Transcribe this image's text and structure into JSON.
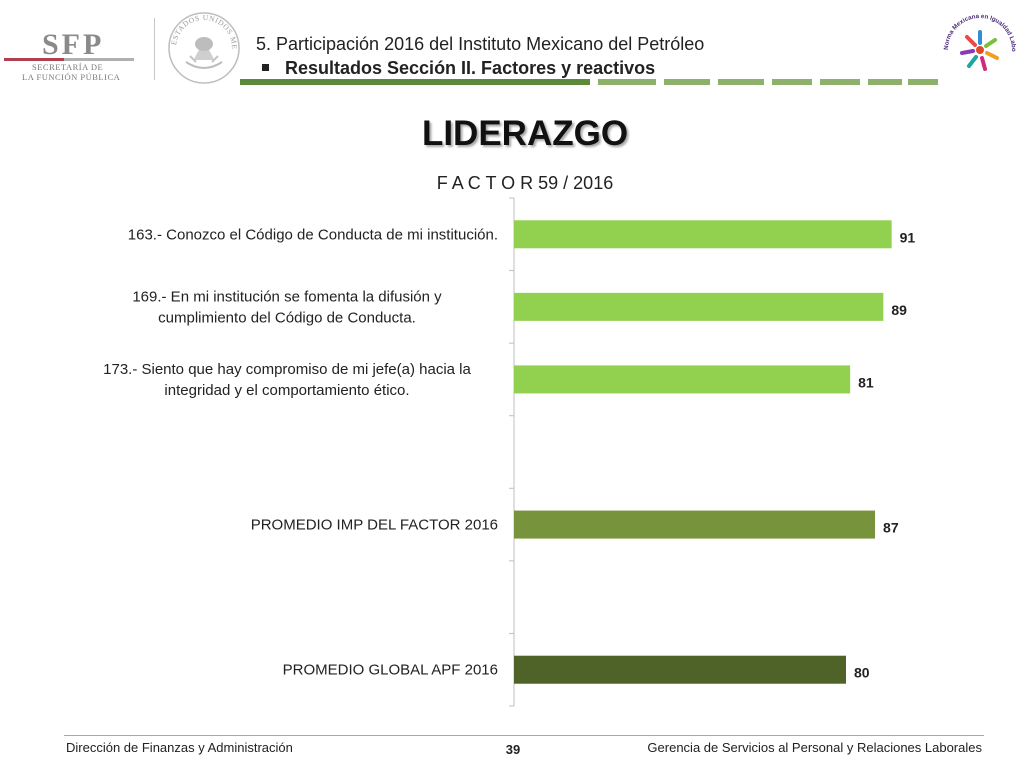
{
  "header": {
    "sfp_logo": {
      "initials": "SFP",
      "line1": "SECRETARÍA DE",
      "line2": "LA FUNCIÓN PÚBLICA"
    },
    "seal_text": "ESTADOS UNIDOS MEXICANOS",
    "line1": "5. Participación 2016 del Instituto Mexicano del Petróleo",
    "line2": "Resultados Sección II. Factores y reactivos",
    "norma_logo_text": "Norma Mexicana en Igualdad Laboral y No Discriminación",
    "colors": {
      "stripe_dark": "#5a8a3a",
      "stripe_light": "#8db06a"
    }
  },
  "chart_data": {
    "type": "bar",
    "orientation": "horizontal",
    "title": "LIDERAZGO",
    "subtitle": "F A C T O R   59 /   2016",
    "categories": [
      "163.- Conozco el Código de Conducta de mi institución.",
      "169.- En mi institución se fomenta la difusión y cumplimiento del Código de Conducta.",
      "173.- Siento que hay compromiso de mi jefe(a) hacia la integridad y el comportamiento ético.",
      "",
      "PROMEDIO IMP DEL FACTOR   2016",
      "",
      "PROMEDIO GLOBAL APF   2016"
    ],
    "values": [
      91,
      89,
      81,
      null,
      87,
      null,
      80
    ],
    "data_labels": [
      "91",
      "89",
      "81",
      "",
      "87",
      "",
      "80"
    ],
    "bar_colors": [
      "#92d050",
      "#92d050",
      "#92d050",
      "",
      "#77933c",
      "",
      "#4f6228"
    ],
    "xlim": [
      0,
      100
    ],
    "grid": false
  },
  "footer": {
    "left": "Dirección de Finanzas y Administración",
    "page": "39",
    "right": "Gerencia de Servicios al Personal y Relaciones Laborales"
  }
}
